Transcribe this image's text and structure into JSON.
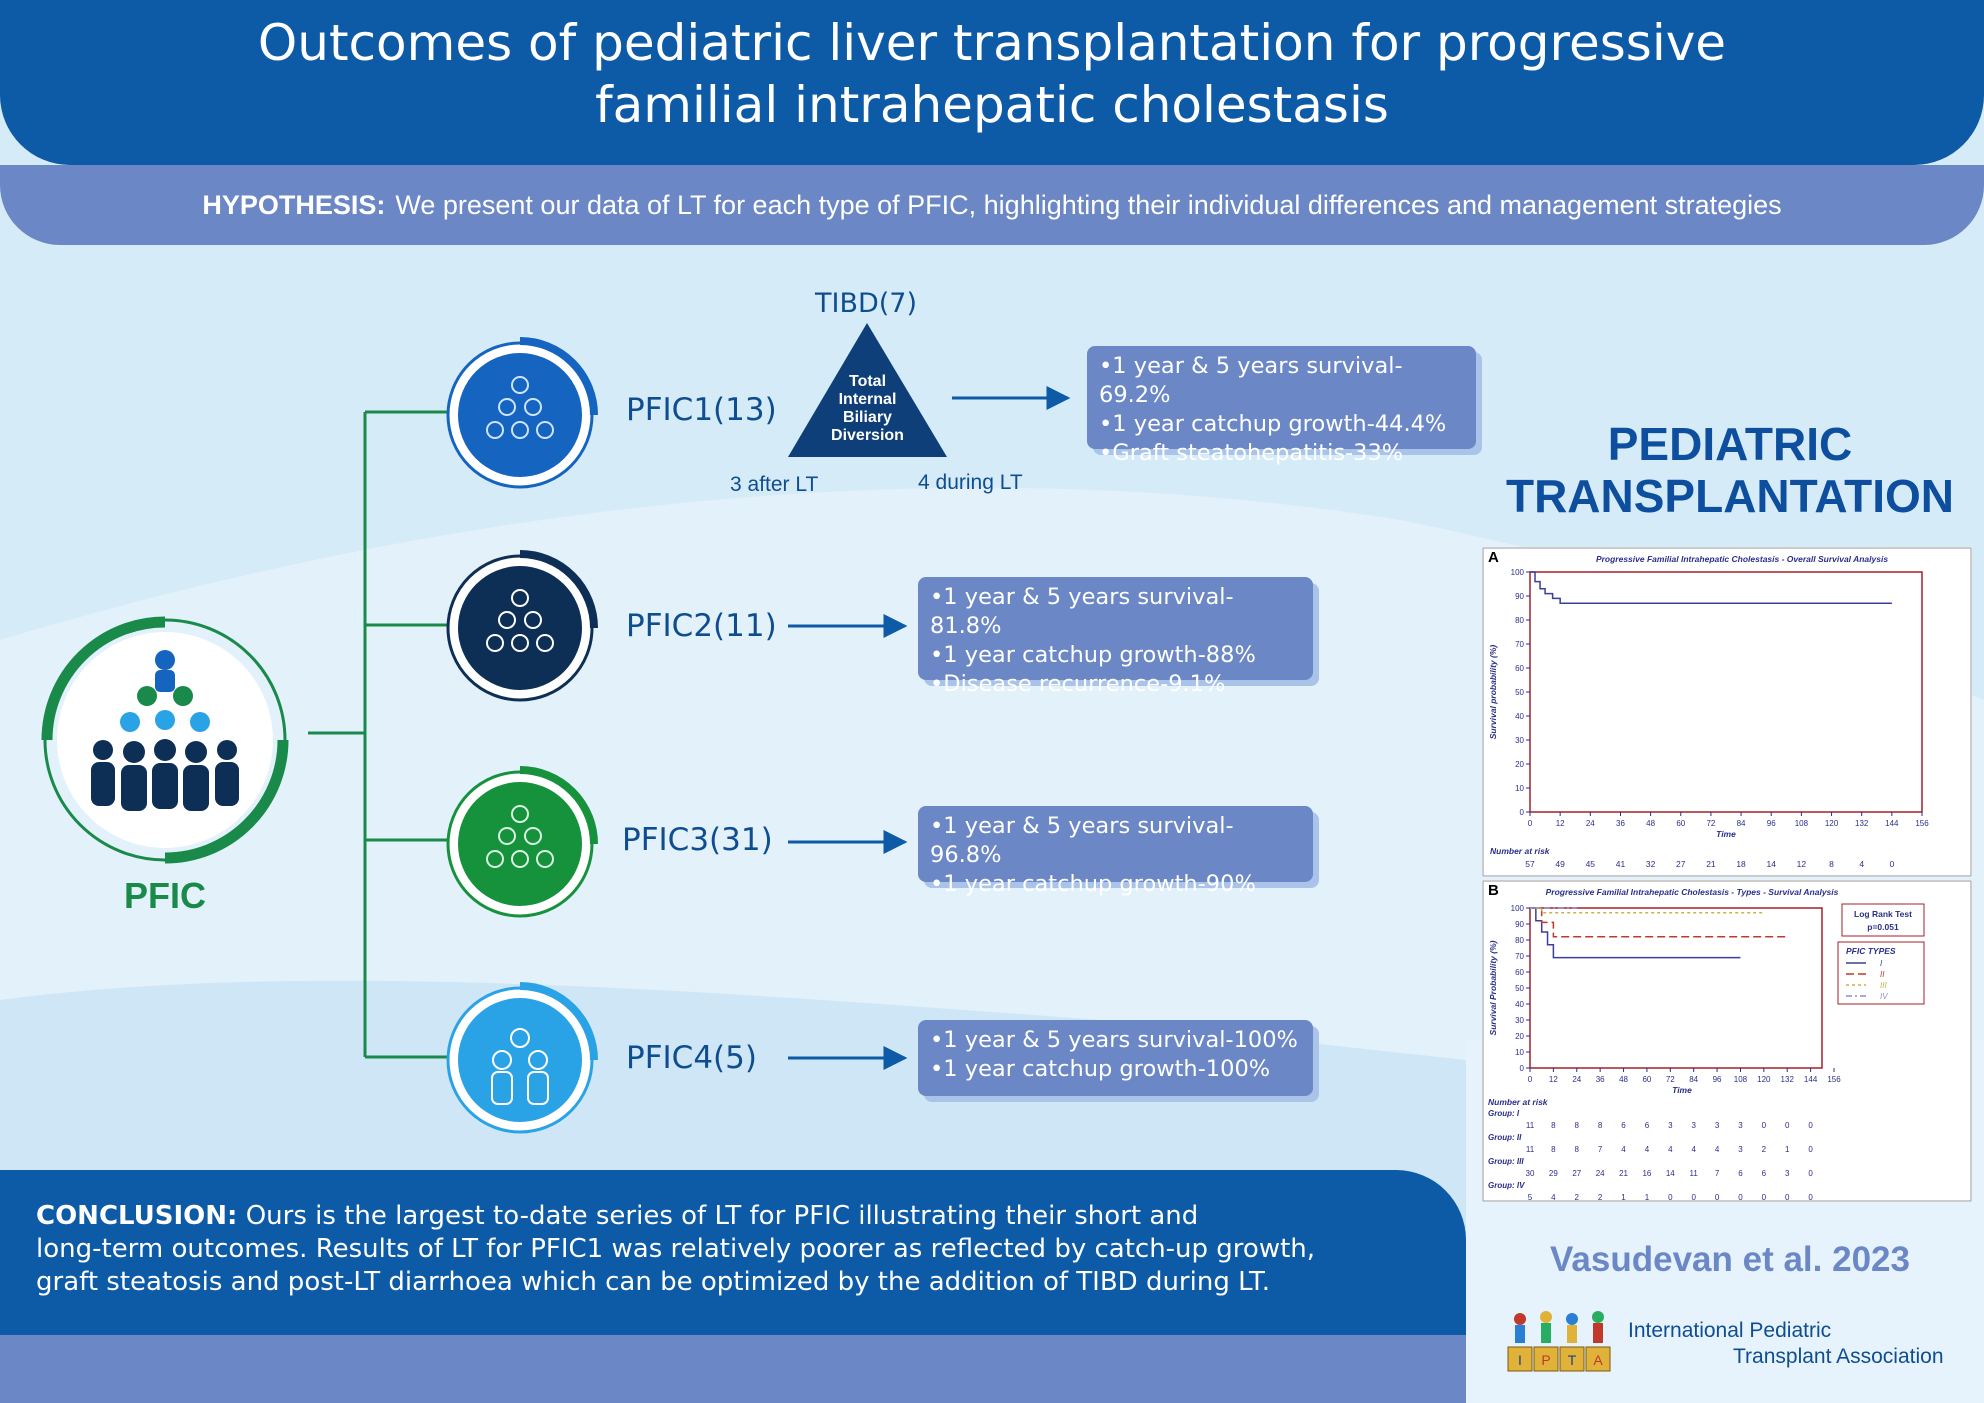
{
  "title_lines": [
    "Outcomes of pediatric liver transplantation for progressive",
    "familial intrahepatic cholestasis"
  ],
  "hypothesis": {
    "label": "HYPOTHESIS:",
    "text": "We present our data of LT for each type of PFIC, highlighting their individual differences and management strategies"
  },
  "pfic_main_label": "PFIC",
  "tibd": {
    "count_label": "TIBD(7)",
    "triangle_lines": [
      "Total",
      "Internal",
      "Biliary",
      "Diversion"
    ],
    "after": "3 after LT",
    "during": "4 during LT"
  },
  "groups": [
    {
      "label": "PFIC1(13)",
      "bullets": [
        "1 year & 5 years survival-69.2%",
        "1 year catchup growth-44.4%",
        "Graft steatohepatitis-33%"
      ],
      "color": "#1565c0"
    },
    {
      "label": "PFIC2(11)",
      "bullets": [
        "1 year & 5 years survival-81.8%",
        "1 year catchup growth-88%",
        "Disease recurrence-9.1%"
      ],
      "color": "#0e2f55"
    },
    {
      "label": "PFIC3(31)",
      "bullets": [
        "1 year & 5 years survival-96.8%",
        "1 year catchup growth-90%"
      ],
      "color": "#16923d"
    },
    {
      "label": "PFIC4(5)",
      "bullets": [
        "1 year & 5 years survival-100%",
        "1 year catchup growth-100%"
      ],
      "color": "#2aa3e6"
    }
  ],
  "journal_lines": [
    "PEDIATRIC",
    "TRANSPLANTATION"
  ],
  "chart_data": [
    {
      "type": "line",
      "panel": "A",
      "title": "Progressive Familial Intrahepatic Cholestasis - Overall Survival Analysis",
      "xlabel": "Time",
      "ylabel": "Survival probability (%)",
      "xlim": [
        0,
        156
      ],
      "ylim": [
        0,
        100
      ],
      "x_ticks": [
        0,
        12,
        24,
        36,
        48,
        60,
        72,
        84,
        96,
        108,
        120,
        132,
        144,
        156
      ],
      "y_ticks": [
        0,
        10,
        20,
        30,
        40,
        50,
        60,
        70,
        80,
        90,
        100
      ],
      "series": [
        {
          "x": [
            0,
            2,
            4,
            6,
            9,
            12,
            144
          ],
          "values": [
            100,
            96,
            93,
            91,
            89,
            87,
            87
          ]
        }
      ],
      "risk_label": "Number at risk",
      "number_at_risk": [
        57,
        49,
        45,
        41,
        32,
        27,
        21,
        18,
        14,
        12,
        8,
        4,
        0
      ]
    },
    {
      "type": "line",
      "panel": "B",
      "title": "Progressive Familial Intrahepatic Cholestasis - Types - Survival Analysis",
      "xlabel": "Time",
      "ylabel": "Survival Probability (%)",
      "xlim": [
        0,
        156
      ],
      "ylim": [
        0,
        100
      ],
      "x_ticks": [
        0,
        12,
        24,
        36,
        48,
        60,
        72,
        84,
        96,
        108,
        120,
        132,
        144,
        156
      ],
      "y_ticks": [
        0,
        10,
        20,
        30,
        40,
        50,
        60,
        70,
        80,
        90,
        100
      ],
      "logrank": [
        "Log Rank Test",
        "p=0.051"
      ],
      "legend_title": "PFIC TYPES",
      "series": [
        {
          "name": "I",
          "color": "#3b3f99",
          "x": [
            0,
            3,
            6,
            9,
            12,
            108
          ],
          "values": [
            100,
            92,
            85,
            77,
            69,
            69
          ]
        },
        {
          "name": "II",
          "color": "#c0392b",
          "x": [
            0,
            6,
            12,
            24,
            132
          ],
          "values": [
            100,
            91,
            82,
            82,
            82
          ]
        },
        {
          "name": "III",
          "color": "#c9b24a",
          "x": [
            0,
            6,
            12,
            120
          ],
          "values": [
            100,
            97,
            97,
            97
          ]
        },
        {
          "name": "IV",
          "color": "#8e8ec9",
          "x": [
            0,
            24
          ],
          "values": [
            100,
            100
          ]
        }
      ],
      "risk_label": "Number at risk",
      "risk_groups": [
        {
          "label": "Group: I",
          "values": [
            11,
            8,
            8,
            8,
            6,
            6,
            3,
            3,
            3,
            3,
            0,
            0,
            0
          ]
        },
        {
          "label": "Group: II",
          "values": [
            11,
            8,
            8,
            7,
            4,
            4,
            4,
            4,
            4,
            3,
            2,
            1,
            0
          ]
        },
        {
          "label": "Group: III",
          "values": [
            30,
            29,
            27,
            24,
            21,
            16,
            14,
            11,
            7,
            6,
            6,
            3,
            0
          ]
        },
        {
          "label": "Group: IV",
          "values": [
            5,
            4,
            2,
            2,
            1,
            1,
            0,
            0,
            0,
            0,
            0,
            0,
            0
          ]
        }
      ]
    }
  ],
  "conclusion": {
    "label": "CONCLUSION:",
    "lines": [
      "Ours is the largest to-date series of LT for PFIC illustrating their short and",
      "long-term outcomes. Results of LT for PFIC1 was relatively poorer as reflected by catch-up growth,",
      "graft steatosis and post-LT diarrhoea which can be optimized by the addition of TIBD during LT."
    ]
  },
  "author": "Vasudevan et al. 2023",
  "ipta": {
    "line1": "International Pediatric",
    "line2": "Transplant Association",
    "blocks": [
      "I",
      "P",
      "T",
      "A"
    ]
  },
  "colors": {
    "dark_blue": "#0d5aa7",
    "mid_blue": "#6b87c6",
    "green_line": "#1a8a4a",
    "text_blue": "#0f4d91"
  }
}
